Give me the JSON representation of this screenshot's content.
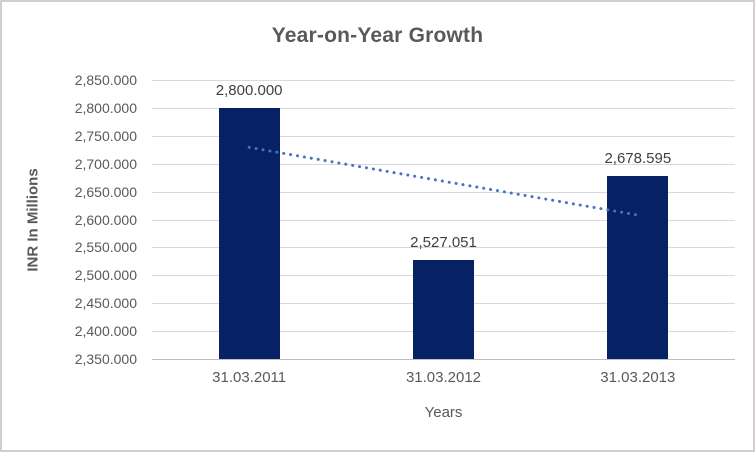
{
  "chart": {
    "title": "Year-on-Year Growth",
    "y_axis_title": "INR In Millions",
    "x_axis_title": "Years"
  },
  "chart_data": {
    "type": "bar",
    "title": "Year-on-Year Growth",
    "xlabel": "Years",
    "ylabel": "INR In Millions",
    "categories": [
      "31.03.2011",
      "31.03.2012",
      "31.03.2013"
    ],
    "values": [
      2800.0,
      2527.051,
      2678.595
    ],
    "data_labels": [
      "2,800.000",
      "2,527.051",
      "2,678.595"
    ],
    "ylim": [
      2350,
      2850
    ],
    "y_tick_step": 50,
    "y_ticks": [
      2350,
      2400,
      2450,
      2500,
      2550,
      2600,
      2650,
      2700,
      2750,
      2800,
      2850
    ],
    "y_tick_labels": [
      "2,350.000",
      "2,400.000",
      "2,450.000",
      "2,500.000",
      "2,550.000",
      "2,600.000",
      "2,650.000",
      "2,700.000",
      "2,750.000",
      "2,800.000",
      "2,850.000"
    ],
    "grid": true,
    "legend": "none",
    "trendline": {
      "type": "linear",
      "style": "dotted",
      "points": [
        {
          "category": "31.03.2011",
          "value": 2729.3
        },
        {
          "category": "31.03.2013",
          "value": 2607.9
        }
      ]
    },
    "colors": {
      "bar": "#072264",
      "trendline": "#4472C4",
      "gridline": "#D9D9D9",
      "axis_line": "#BFBFBF",
      "text": "#595959",
      "data_label_text": "#404040",
      "border": "#D0CECE",
      "background": "#FFFFFF"
    }
  }
}
